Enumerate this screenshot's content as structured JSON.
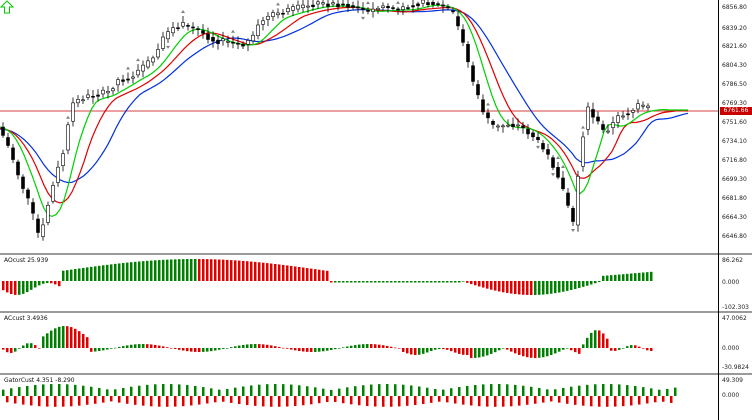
{
  "main_chart": {
    "price_scale": [
      "6856.80",
      "6839.20",
      "6821.60",
      "6804.30",
      "6786.50",
      "6769.30",
      "6751.60",
      "6734.10",
      "6716.80",
      "6699.30",
      "6681.80",
      "6664.30",
      "6646.80"
    ],
    "current_price": "6761.66",
    "colors": {
      "ma_fast": "#00d000",
      "ma_mid": "#e00000",
      "ma_slow": "#0030e0",
      "current_price_line": "#c80000",
      "candle_outline": "#000000",
      "candle_bull_fill": "#ffffff",
      "candle_bear_fill": "#000000",
      "fractal_marker": "#808080",
      "signal_arrow": "#00c800"
    },
    "signal_icon": "up-arrow-icon"
  },
  "indicator_1": {
    "title": "AOcust 25.939",
    "scale": [
      "86.262",
      "0.000",
      "-102.303"
    ],
    "colors": {
      "up": "#008000",
      "down": "#e00000"
    }
  },
  "indicator_2": {
    "title": "ACcust 3.4936",
    "scale": [
      "47.0062",
      "0.000",
      "-30.9824"
    ],
    "colors": {
      "up": "#008000",
      "down": "#e00000"
    }
  },
  "indicator_3": {
    "title": "GatorCust 4.351 -8.290",
    "scale": [
      "49.309",
      "0.000"
    ],
    "colors": {
      "up": "#008000",
      "down": "#e00000"
    }
  }
}
